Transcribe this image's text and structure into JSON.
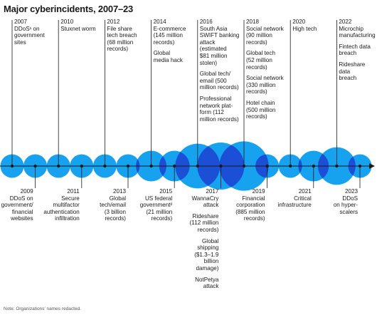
{
  "title": "Major cyberincidents, 2007–23",
  "note": "Note: Organizations' names redacted.",
  "colors": {
    "circle": "#17a2ef",
    "circle_overlap": "#1a4fd6",
    "line": "#1a1a1a"
  },
  "events": [
    {
      "year": "2007",
      "position": "above",
      "size": 1.0,
      "items": [
        "DDoS¹ on\ngovernment\nsites"
      ]
    },
    {
      "year": "2009",
      "position": "below",
      "size": 1.0,
      "items": [
        "DDoS on\ngovernment/\nfinancial\nwebsites"
      ]
    },
    {
      "year": "2010",
      "position": "above",
      "size": 1.0,
      "items": [
        "Stuxnet worm"
      ]
    },
    {
      "year": "2011",
      "position": "below",
      "size": 1.0,
      "items": [
        "Secure\nmultifactor\nauthentication\ninfiltration"
      ]
    },
    {
      "year": "2012",
      "position": "above",
      "size": 1.0,
      "items": [
        "File share\ntech breach\n(68 million\nrecords)"
      ]
    },
    {
      "year": "2013",
      "position": "below",
      "size": 1.0,
      "items": [
        "Global\ntech/email\n(3 billion\nrecords)"
      ]
    },
    {
      "year": "2014",
      "position": "above",
      "size": 1.3,
      "items": [
        "E-commerce\n(145 million\nrecords)",
        "Global\nmedia hack"
      ]
    },
    {
      "year": "2015",
      "position": "below",
      "size": 1.3,
      "items": [
        "US federal\ngovernment²\n(21 million\nrecords)"
      ]
    },
    {
      "year": "2016",
      "position": "above",
      "size": 1.9,
      "items": [
        "South Asia\nSWIFT banking\nattack\n(estimated\n$81 million\nstolen)",
        "Global tech/\nemail (500\nmillion records)",
        "Professional\nnetwork plat-\nform (112\nmillion records)"
      ]
    },
    {
      "year": "2017",
      "position": "below",
      "size": 2.0,
      "items": [
        "WannaCry\nattack",
        "Rideshare\n(112 million\nrecords)",
        "Global\nshipping\n($1.3–1.9\nbillion\ndamage)",
        "NotPetya\nattack"
      ]
    },
    {
      "year": "2018",
      "position": "above",
      "size": 2.1,
      "items": [
        "Social network\n(90 million\nrecords)",
        "Global tech\n(52 million\nrecords)",
        "Social network\n(330 million\nrecords)",
        "Hotel chain\n(500 million\nrecords)"
      ]
    },
    {
      "year": "2019",
      "position": "below",
      "size": 1.0,
      "items": [
        "Financial\ncorporation\n(885 million\nrecords)"
      ]
    },
    {
      "year": "2020",
      "position": "above",
      "size": 1.0,
      "items": [
        "High tech"
      ]
    },
    {
      "year": "2021",
      "position": "below",
      "size": 1.3,
      "items": [
        "Critical\ninfrastructure"
      ]
    },
    {
      "year": "2022",
      "position": "above",
      "size": 1.6,
      "items": [
        "Microchip\nmanufacturing",
        "Fintech data\nbreach",
        "Rideshare data\nbreach"
      ]
    },
    {
      "year": "2023",
      "position": "below",
      "size": 1.0,
      "items": [
        "DDoS\non hyper-\nscalers"
      ]
    }
  ]
}
